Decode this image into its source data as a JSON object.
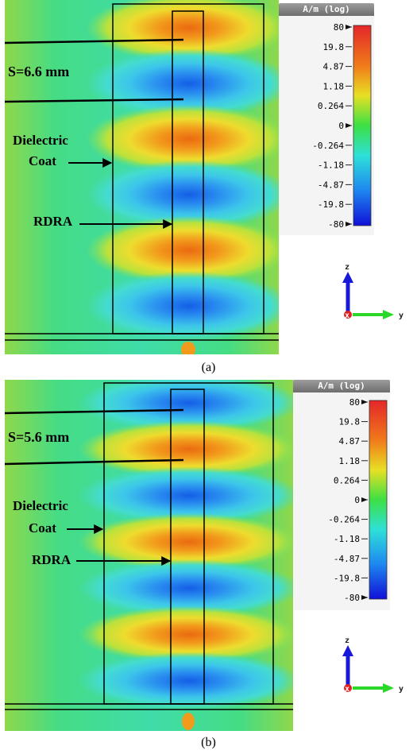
{
  "panels": [
    {
      "caption": "(a)",
      "spacing_label": "S=6.6 mm",
      "label_coat_1": "Dielectric",
      "label_coat_2": "Coat",
      "label_rdra": "RDRA",
      "legend": {
        "unit": "A/m (log)",
        "ticks": [
          "80",
          "19.8",
          "4.87",
          "1.18",
          "0.264",
          "0",
          "-0.264",
          "-1.18",
          "-4.87",
          "-19.8",
          "-80"
        ]
      },
      "axes": {
        "vertical": "z",
        "out_of_plane": "x",
        "horizontal": "y"
      },
      "lobes": [
        "warm",
        "cool",
        "warm",
        "cool",
        "warm",
        "cool"
      ]
    },
    {
      "caption": "(b)",
      "spacing_label": "S=5.6 mm",
      "label_coat_1": "Dielectric",
      "label_coat_2": "Coat",
      "label_rdra": "RDRA",
      "legend": {
        "unit": "A/m (log)",
        "ticks": [
          "80",
          "19.8",
          "4.87",
          "1.18",
          "0.264",
          "0",
          "-0.264",
          "-1.18",
          "-4.87",
          "-19.8",
          "-80"
        ]
      },
      "axes": {
        "vertical": "z",
        "out_of_plane": "x",
        "horizontal": "y"
      },
      "lobes": [
        "cool",
        "warm",
        "cool",
        "warm",
        "cool",
        "warm",
        "cool"
      ]
    }
  ],
  "colors": {
    "background_field": "#3fdc88",
    "cool_core": "#1565e8",
    "warm_core": "#f07814",
    "scale_top": "#e4262a",
    "scale_bottom": "#1010d8"
  }
}
